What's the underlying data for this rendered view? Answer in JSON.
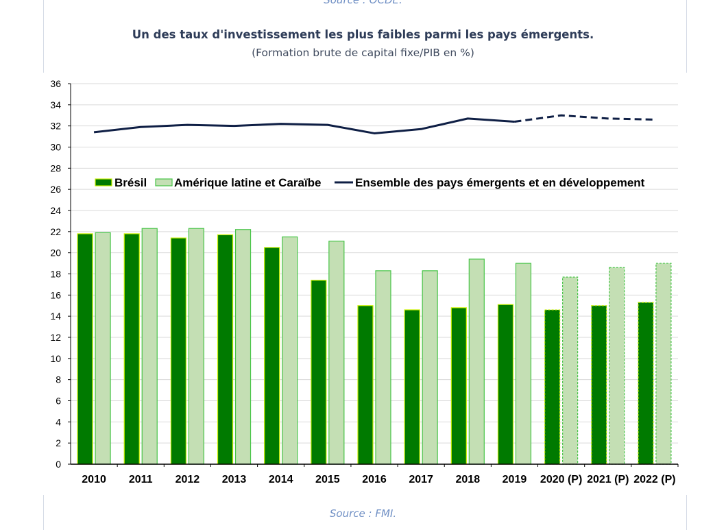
{
  "header": {
    "top_source": "Source : OCDE.",
    "title": "Un des taux d'investissement les plus faibles parmi les pays émergents.",
    "subtitle": "(Formation brute de capital fixe/PIB en %)"
  },
  "footer": {
    "source": "Source : FMI."
  },
  "colors": {
    "bresil_fill": "#007a00",
    "bresil_border": "#c8f000",
    "amerique_fill": "#c4dfb4",
    "amerique_border": "#47c447",
    "ensemble_line": "#0f1f45",
    "grid": "#d9d9d9"
  },
  "chart_data": {
    "type": "bar",
    "categories": [
      "2010",
      "2011",
      "2012",
      "2013",
      "2014",
      "2015",
      "2016",
      "2017",
      "2018",
      "2019",
      "2020 (P)",
      "2021 (P)",
      "2022 (P)"
    ],
    "projected_from_index": 10,
    "series": [
      {
        "name": "Brésil",
        "type": "bar",
        "values": [
          21.8,
          21.8,
          21.4,
          21.7,
          20.5,
          17.4,
          15.0,
          14.6,
          14.8,
          15.1,
          14.6,
          15.0,
          15.3
        ]
      },
      {
        "name": "Amérique latine et Caraïbe",
        "type": "bar",
        "values": [
          21.9,
          22.3,
          22.3,
          22.2,
          21.5,
          21.1,
          18.3,
          18.3,
          19.4,
          19.0,
          17.7,
          18.6,
          19.0
        ]
      },
      {
        "name": "Ensemble des pays émergents et en développement",
        "type": "line",
        "values": [
          31.4,
          31.9,
          32.1,
          32.0,
          32.2,
          32.1,
          31.3,
          31.7,
          32.7,
          32.4,
          33.0,
          32.7,
          32.6
        ]
      }
    ],
    "ylim": [
      0,
      36
    ],
    "yticks": [
      0,
      2,
      4,
      6,
      8,
      10,
      12,
      14,
      16,
      18,
      20,
      22,
      24,
      26,
      28,
      30,
      32,
      34,
      36
    ],
    "grid": true,
    "legend_position": "middle",
    "xlabel": "",
    "ylabel": ""
  }
}
